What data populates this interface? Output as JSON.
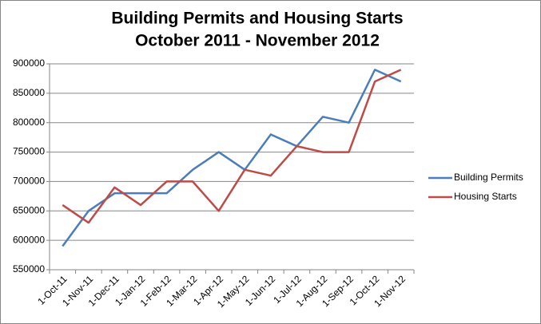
{
  "chart_data": {
    "type": "line",
    "title": "Building Permits and Housing Starts",
    "subtitle": "October 2011 - November 2012",
    "categories": [
      "1-Oct-11",
      "1-Nov-11",
      "1-Dec-11",
      "1-Jan-12",
      "1-Feb-12",
      "1-Mar-12",
      "1-Apr-12",
      "1-May-12",
      "1-Jun-12",
      "1-Jul-12",
      "1-Aug-12",
      "1-Sep-12",
      "1-Oct-12",
      "1-Nov-12"
    ],
    "series": [
      {
        "name": "Building Permits",
        "color": "#4a7ebb",
        "values": [
          590000,
          650000,
          680000,
          680000,
          680000,
          720000,
          750000,
          720000,
          780000,
          760000,
          810000,
          800000,
          890000,
          870000
        ]
      },
      {
        "name": "Housing Starts",
        "color": "#be4b48",
        "values": [
          660000,
          630000,
          690000,
          660000,
          700000,
          700000,
          650000,
          720000,
          710000,
          760000,
          750000,
          750000,
          870000,
          890000
        ]
      }
    ],
    "ylim": [
      550000,
      900000
    ],
    "yticks": [
      550000,
      600000,
      650000,
      700000,
      750000,
      800000,
      850000,
      900000
    ],
    "grid": true,
    "legend": "right"
  }
}
